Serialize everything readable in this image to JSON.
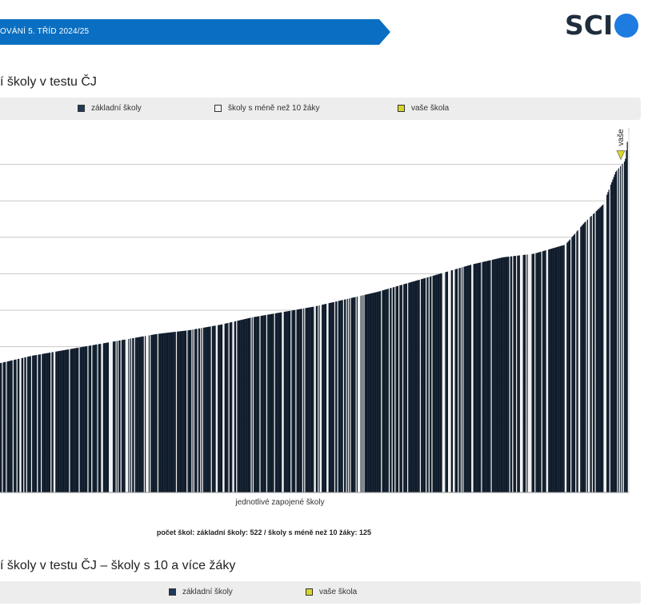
{
  "header": {
    "banner_text": "OVÁNÍ 5. TŘÍD 2024/25",
    "banner_color": "#0a6fc2",
    "logo_text": "SCI",
    "logo_dot_color": "#1e7be0"
  },
  "section1": {
    "title": "í školy v testu ČJ",
    "legend": [
      {
        "label": "základní školy",
        "color": "#1f3a5a"
      },
      {
        "label": "školy s méně než 10 žáky",
        "color": "#f2f2f2"
      },
      {
        "label": "vaše škola",
        "color": "#d6d62a"
      }
    ],
    "counts_text": "počet škol: základní školy: 522 / školy s méně než 10 žáky: 125"
  },
  "section2": {
    "title": "í školy v testu ČJ – školy s 10 a více žáky",
    "legend": [
      {
        "label": "základní školy",
        "color": "#1f3a5a"
      },
      {
        "label": "vaše škola",
        "color": "#d6d62a"
      }
    ]
  },
  "chart_data": {
    "type": "bar",
    "title": "",
    "xlabel": "jednotlivé zapojené školy",
    "ylabel": "",
    "ylim": [
      0,
      10
    ],
    "grid": true,
    "legend_placement": "top",
    "series_color": "#0e1b2a",
    "small_school_color": "#f2f2f2",
    "own_school_color": "#d6d62a",
    "counts": {
      "zakladni_skoly": 522,
      "skoly_male": 125
    },
    "curve_points": [
      [
        0,
        3.55
      ],
      [
        0.05,
        3.75
      ],
      [
        0.1,
        3.9
      ],
      [
        0.15,
        4.05
      ],
      [
        0.2,
        4.2
      ],
      [
        0.25,
        4.35
      ],
      [
        0.3,
        4.45
      ],
      [
        0.35,
        4.6
      ],
      [
        0.4,
        4.8
      ],
      [
        0.45,
        4.95
      ],
      [
        0.5,
        5.1
      ],
      [
        0.55,
        5.3
      ],
      [
        0.6,
        5.5
      ],
      [
        0.65,
        5.75
      ],
      [
        0.7,
        6.0
      ],
      [
        0.75,
        6.25
      ],
      [
        0.8,
        6.45
      ],
      [
        0.85,
        6.55
      ],
      [
        0.9,
        6.8
      ],
      [
        0.93,
        7.4
      ],
      [
        0.96,
        7.9
      ],
      [
        0.98,
        8.8
      ],
      [
        0.995,
        9.1
      ],
      [
        1,
        9.85
      ]
    ],
    "annotation": {
      "label": "vaše škola",
      "value": 9.2
    }
  }
}
